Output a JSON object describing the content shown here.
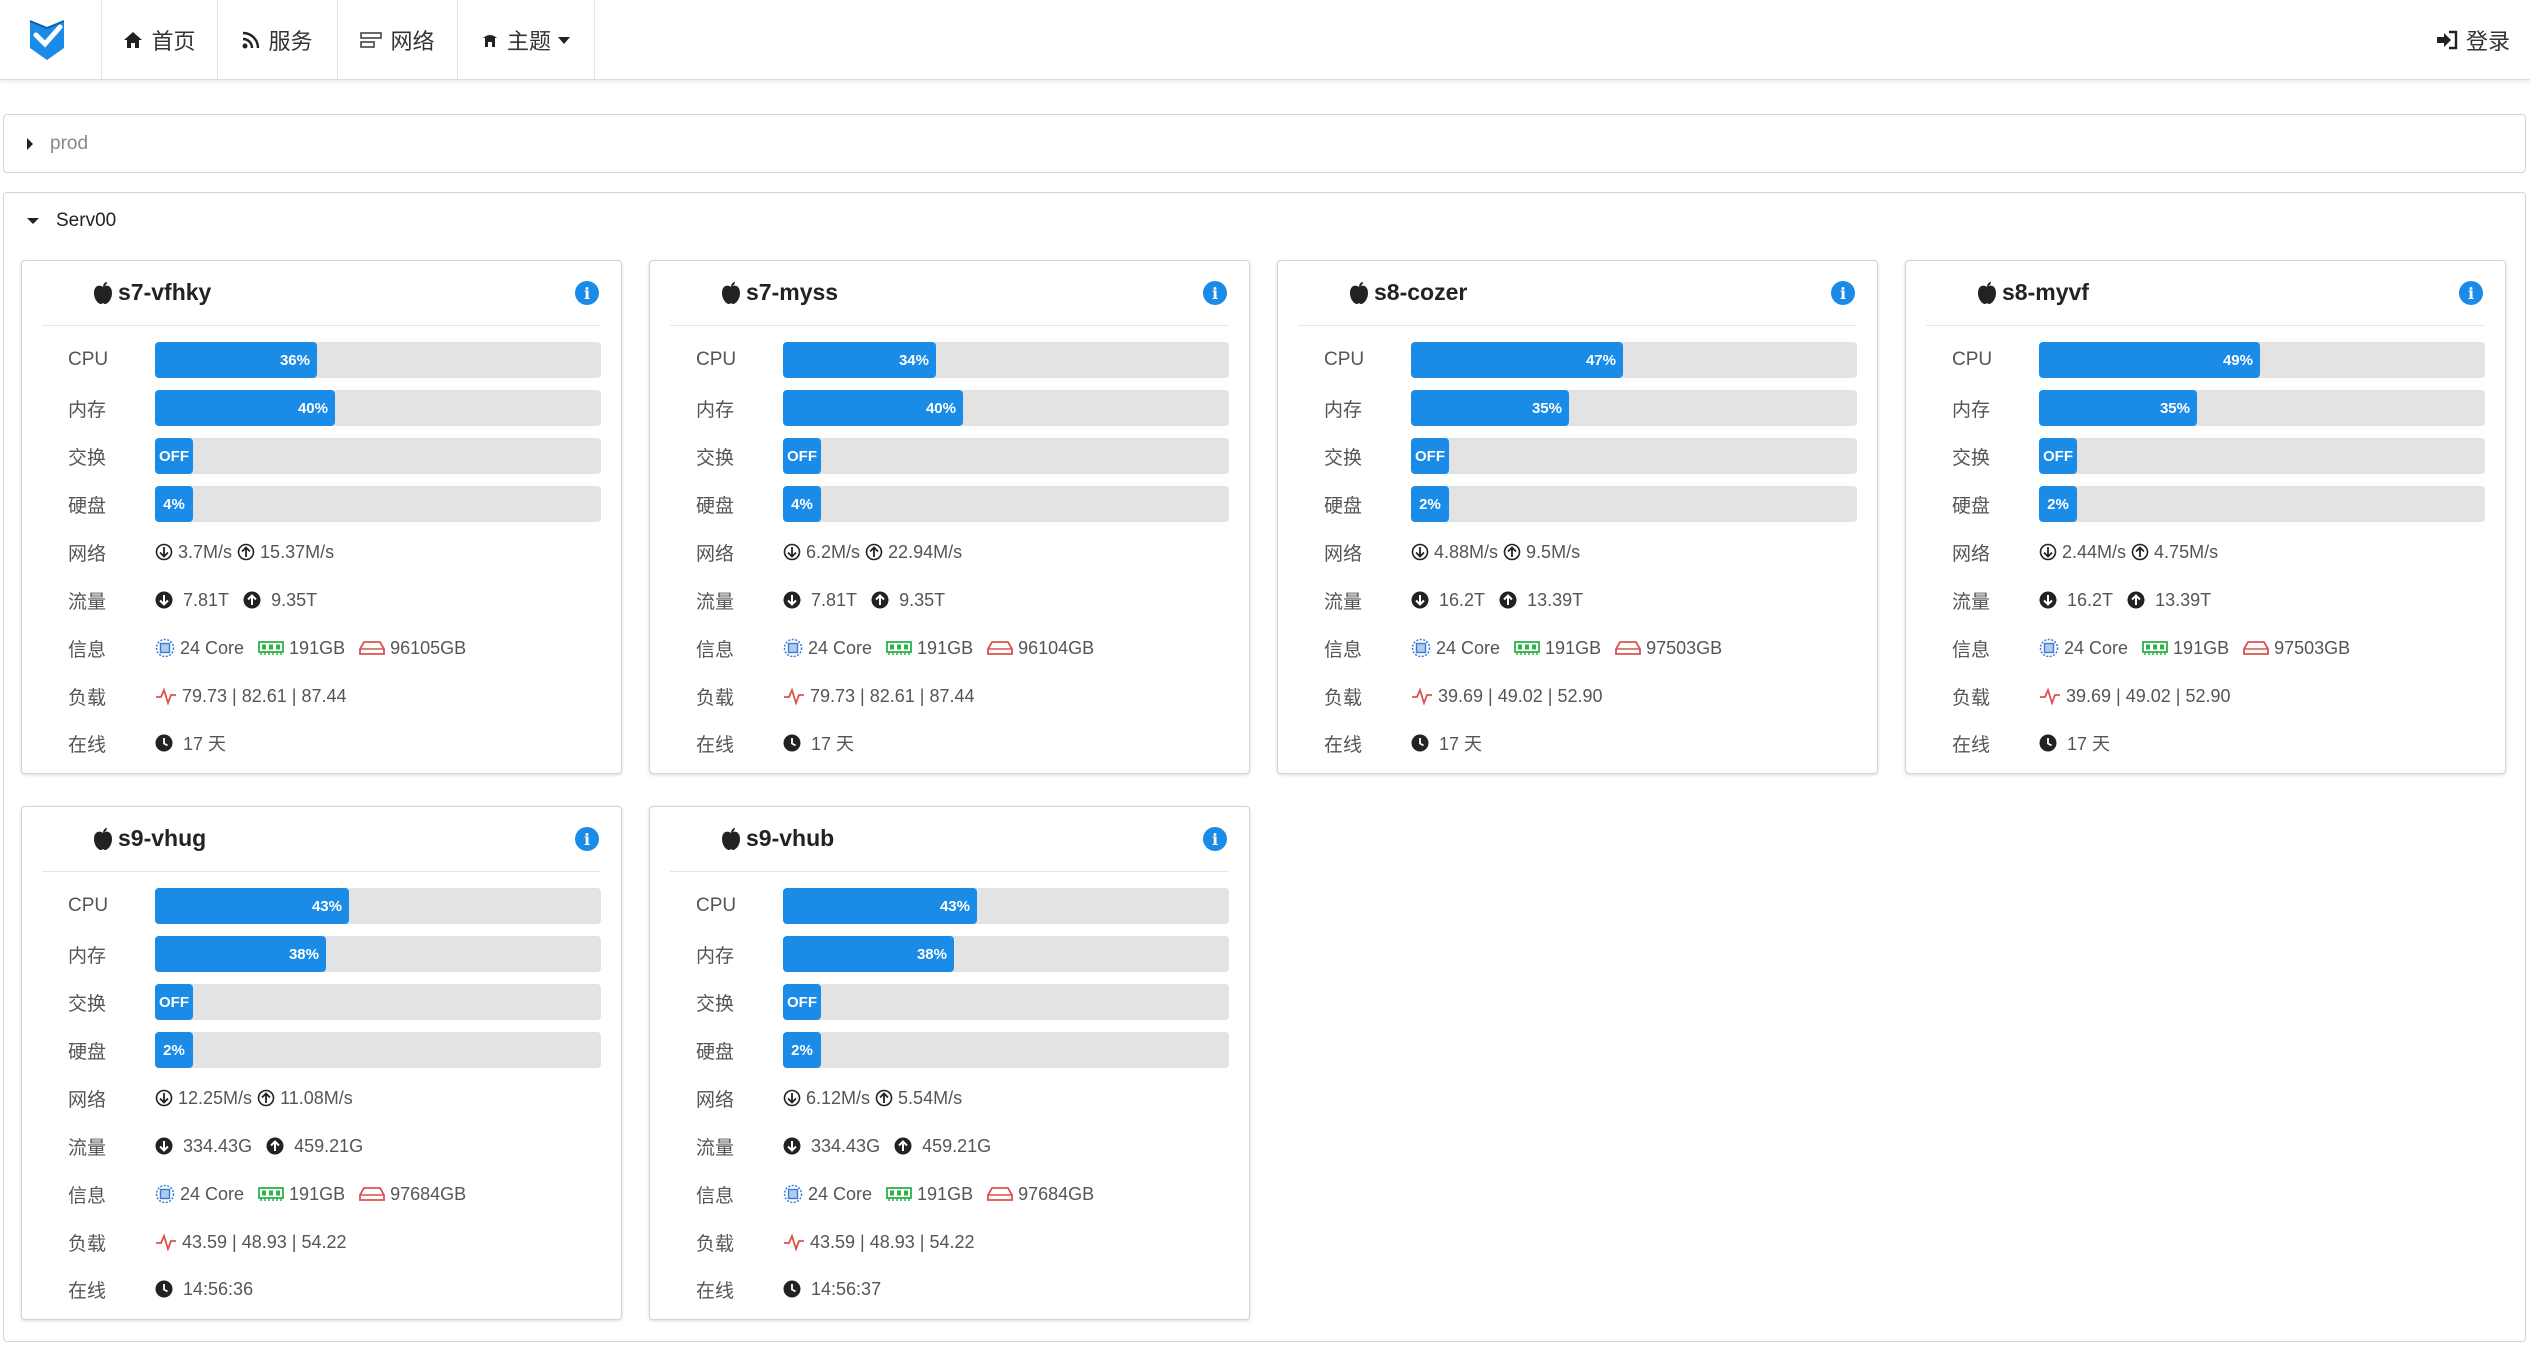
{
  "nav": {
    "home": "首页",
    "services": "服务",
    "network": "网络",
    "theme": "主题",
    "login": "登录"
  },
  "groups": [
    {
      "name": "prod",
      "expanded": false
    },
    {
      "name": "Serv00",
      "expanded": true
    }
  ],
  "labels": {
    "cpu": "CPU",
    "mem": "内存",
    "swap": "交换",
    "disk": "硬盘",
    "net": "网络",
    "traffic": "流量",
    "info": "信息",
    "load": "负载",
    "uptime": "在线"
  },
  "servers": [
    {
      "name": "s7-vfhky",
      "cpu": "36%",
      "cpu_pct": 36,
      "mem": "40%",
      "mem_pct": 40,
      "swap": "OFF",
      "disk": "4%",
      "disk_pct": 4,
      "net_down": "3.7M/s",
      "net_up": "15.37M/s",
      "traffic_down": "7.81T",
      "traffic_up": "9.35T",
      "cores": "24 Core",
      "ram": "191GB",
      "storage": "96105GB",
      "load": "79.73 | 82.61 | 87.44",
      "uptime": "17 天"
    },
    {
      "name": "s7-myss",
      "cpu": "34%",
      "cpu_pct": 34,
      "mem": "40%",
      "mem_pct": 40,
      "swap": "OFF",
      "disk": "4%",
      "disk_pct": 4,
      "net_down": "6.2M/s",
      "net_up": "22.94M/s",
      "traffic_down": "7.81T",
      "traffic_up": "9.35T",
      "cores": "24 Core",
      "ram": "191GB",
      "storage": "96104GB",
      "load": "79.73 | 82.61 | 87.44",
      "uptime": "17 天"
    },
    {
      "name": "s8-cozer",
      "cpu": "47%",
      "cpu_pct": 47,
      "mem": "35%",
      "mem_pct": 35,
      "swap": "OFF",
      "disk": "2%",
      "disk_pct": 2,
      "net_down": "4.88M/s",
      "net_up": "9.5M/s",
      "traffic_down": "16.2T",
      "traffic_up": "13.39T",
      "cores": "24 Core",
      "ram": "191GB",
      "storage": "97503GB",
      "load": "39.69 | 49.02 | 52.90",
      "uptime": "17 天"
    },
    {
      "name": "s8-myvf",
      "cpu": "49%",
      "cpu_pct": 49,
      "mem": "35%",
      "mem_pct": 35,
      "swap": "OFF",
      "disk": "2%",
      "disk_pct": 2,
      "net_down": "2.44M/s",
      "net_up": "4.75M/s",
      "traffic_down": "16.2T",
      "traffic_up": "13.39T",
      "cores": "24 Core",
      "ram": "191GB",
      "storage": "97503GB",
      "load": "39.69 | 49.02 | 52.90",
      "uptime": "17 天"
    },
    {
      "name": "s9-vhug",
      "cpu": "43%",
      "cpu_pct": 43,
      "mem": "38%",
      "mem_pct": 38,
      "swap": "OFF",
      "disk": "2%",
      "disk_pct": 2,
      "net_down": "12.25M/s",
      "net_up": "11.08M/s",
      "traffic_down": "334.43G",
      "traffic_up": "459.21G",
      "cores": "24 Core",
      "ram": "191GB",
      "storage": "97684GB",
      "load": "43.59 | 48.93 | 54.22",
      "uptime": "14:56:36"
    },
    {
      "name": "s9-vhub",
      "cpu": "43%",
      "cpu_pct": 43,
      "mem": "38%",
      "mem_pct": 38,
      "swap": "OFF",
      "disk": "2%",
      "disk_pct": 2,
      "net_down": "6.12M/s",
      "net_up": "5.54M/s",
      "traffic_down": "334.43G",
      "traffic_up": "459.21G",
      "cores": "24 Core",
      "ram": "191GB",
      "storage": "97684GB",
      "load": "43.59 | 48.93 | 54.22",
      "uptime": "14:56:37"
    }
  ],
  "colors": {
    "accent": "#1b8be8",
    "bar_track": "#e3e3e3",
    "cpu_icon": "#3a7bd5",
    "ram_icon": "#2db34a",
    "disk_icon": "#d9534f",
    "load_icon": "#d9534f"
  }
}
